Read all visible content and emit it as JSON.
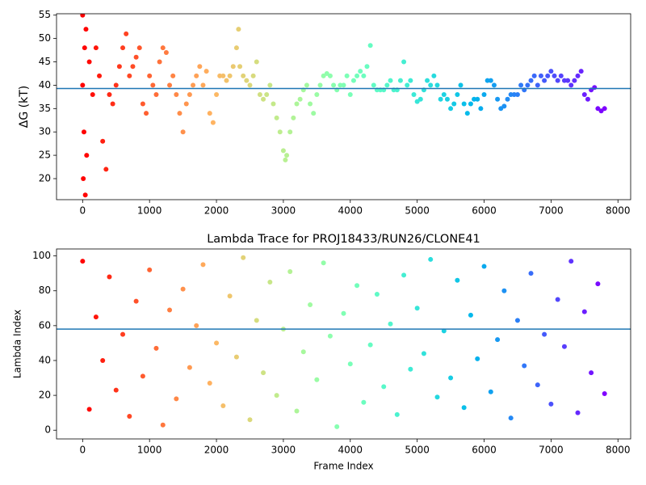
{
  "chart_data": [
    {
      "type": "scatter",
      "ylabel": "ΔG (kT)",
      "x": [
        0,
        50,
        100,
        150,
        200,
        250,
        300,
        350,
        400,
        450,
        500,
        550,
        600,
        650,
        700,
        750,
        800,
        850,
        900,
        950,
        1000,
        1050,
        1100,
        1150,
        1200,
        1250,
        1300,
        1350,
        1400,
        1450,
        1500,
        1550,
        1600,
        1650,
        1700,
        1750,
        1800,
        1850,
        1900,
        1950,
        2000,
        2050,
        2100,
        2150,
        2200,
        2250,
        2300,
        2330,
        2350,
        2400,
        2450,
        2500,
        2550,
        2600,
        2650,
        2700,
        2750,
        2800,
        2850,
        2900,
        2950,
        3000,
        3030,
        3050,
        3100,
        3150,
        3200,
        3250,
        3300,
        3350,
        3400,
        3450,
        3500,
        3550,
        3600,
        3650,
        3700,
        3750,
        3800,
        3850,
        3900,
        3950,
        4000,
        4050,
        4100,
        4150,
        4200,
        4250,
        4300,
        4350,
        4400,
        4450,
        4500,
        4550,
        4600,
        4650,
        4700,
        4750,
        4800,
        4850,
        4900,
        4950,
        5000,
        5050,
        5100,
        5150,
        5200,
        5250,
        5300,
        5350,
        5400,
        5450,
        5500,
        5550,
        5600,
        5650,
        5700,
        5750,
        5800,
        5850,
        5900,
        5950,
        6000,
        6050,
        6100,
        6150,
        6200,
        6250,
        6300,
        6350,
        6400,
        6450,
        6500,
        6550,
        6600,
        6650,
        6700,
        6750,
        6800,
        6850,
        6900,
        6950,
        7000,
        7050,
        7100,
        7150,
        7200,
        7250,
        7300,
        7350,
        7400,
        7450,
        7500,
        7550,
        7600,
        7650,
        7700,
        7750,
        7800,
        0,
        10,
        20,
        30,
        40,
        60
      ],
      "values": [
        40,
        52,
        45,
        38,
        48,
        42,
        28,
        22,
        38,
        36,
        40,
        44,
        48,
        51,
        42,
        44,
        46,
        48,
        36,
        34,
        42,
        40,
        38,
        45,
        48,
        47,
        40,
        42,
        38,
        34,
        30,
        36,
        38,
        40,
        42,
        44,
        40,
        43,
        34,
        32,
        38,
        42,
        42,
        41,
        42,
        44,
        48,
        52,
        44,
        42,
        41,
        40,
        42,
        45,
        38,
        37,
        38,
        40,
        36,
        33,
        30,
        26,
        24,
        25,
        30,
        33,
        36,
        37,
        39,
        40,
        36,
        34,
        38,
        40,
        42,
        42.5,
        42,
        40,
        39,
        40,
        40,
        42,
        38,
        41,
        42,
        43,
        42,
        44,
        48.5,
        40,
        39,
        39,
        39,
        40,
        41,
        39,
        39,
        41,
        45,
        40,
        41,
        38,
        36.5,
        37,
        39,
        41,
        40,
        42,
        40,
        37,
        38,
        37,
        35,
        36,
        38,
        40,
        36,
        34,
        36,
        37,
        37,
        35,
        38,
        41,
        41,
        40,
        37,
        35,
        35.5,
        37,
        38,
        38,
        38,
        40,
        39,
        40,
        41,
        42,
        40,
        42,
        41,
        42,
        43,
        42,
        41,
        42,
        41,
        41,
        40,
        41,
        42,
        43,
        38,
        37,
        39,
        39.5,
        35,
        34.5,
        35,
        55,
        20,
        30,
        48,
        16.5,
        25
      ],
      "cmap": "rainbow_r",
      "hline": 39.3,
      "hline_color": "#1f77b4",
      "xlim": [
        -390,
        8190
      ],
      "ylim": [
        15.5,
        55.3
      ],
      "xticks": [
        0,
        1000,
        2000,
        3000,
        4000,
        5000,
        6000,
        7000,
        8000
      ],
      "yticks": [
        20,
        25,
        30,
        35,
        40,
        45,
        50,
        55
      ]
    },
    {
      "type": "scatter",
      "title": "Lambda Trace for PROJ18433/RUN26/CLONE41",
      "xlabel": "Frame Index",
      "ylabel": "Lambda Index",
      "x": [
        0,
        100,
        200,
        300,
        400,
        500,
        600,
        700,
        800,
        900,
        1000,
        1100,
        1200,
        1300,
        1400,
        1500,
        1600,
        1700,
        1800,
        1900,
        2000,
        2100,
        2200,
        2300,
        2400,
        2500,
        2600,
        2700,
        2800,
        2900,
        3000,
        3100,
        3200,
        3300,
        3400,
        3500,
        3600,
        3700,
        3800,
        3900,
        4000,
        4100,
        4200,
        4300,
        4400,
        4500,
        4600,
        4700,
        4800,
        4900,
        5000,
        5100,
        5200,
        5300,
        5400,
        5500,
        5600,
        5700,
        5800,
        5900,
        6000,
        6100,
        6200,
        6300,
        6400,
        6500,
        6600,
        6700,
        6800,
        6900,
        7000,
        7100,
        7200,
        7300,
        7400,
        7500,
        7600,
        7700,
        7800
      ],
      "values": [
        97,
        12,
        65,
        40,
        88,
        23,
        55,
        8,
        74,
        31,
        92,
        47,
        3,
        69,
        18,
        81,
        36,
        60,
        95,
        27,
        50,
        14,
        77,
        42,
        99,
        6,
        63,
        33,
        85,
        20,
        58,
        91,
        11,
        45,
        72,
        29,
        96,
        54,
        2,
        67,
        38,
        83,
        16,
        49,
        78,
        25,
        61,
        9,
        89,
        35,
        70,
        44,
        98,
        19,
        57,
        30,
        86,
        13,
        66,
        41,
        94,
        22,
        52,
        80,
        7,
        63,
        37,
        90,
        26,
        55,
        15,
        75,
        48,
        97,
        10,
        68,
        33,
        84,
        21
      ],
      "cmap": "rainbow_r",
      "hline": 58,
      "hline_color": "#1f77b4",
      "xlim": [
        -390,
        8190
      ],
      "ylim": [
        -5,
        104
      ],
      "xticks": [
        0,
        1000,
        2000,
        3000,
        4000,
        5000,
        6000,
        7000,
        8000
      ],
      "yticks": [
        0,
        20,
        40,
        60,
        80,
        100
      ]
    }
  ]
}
